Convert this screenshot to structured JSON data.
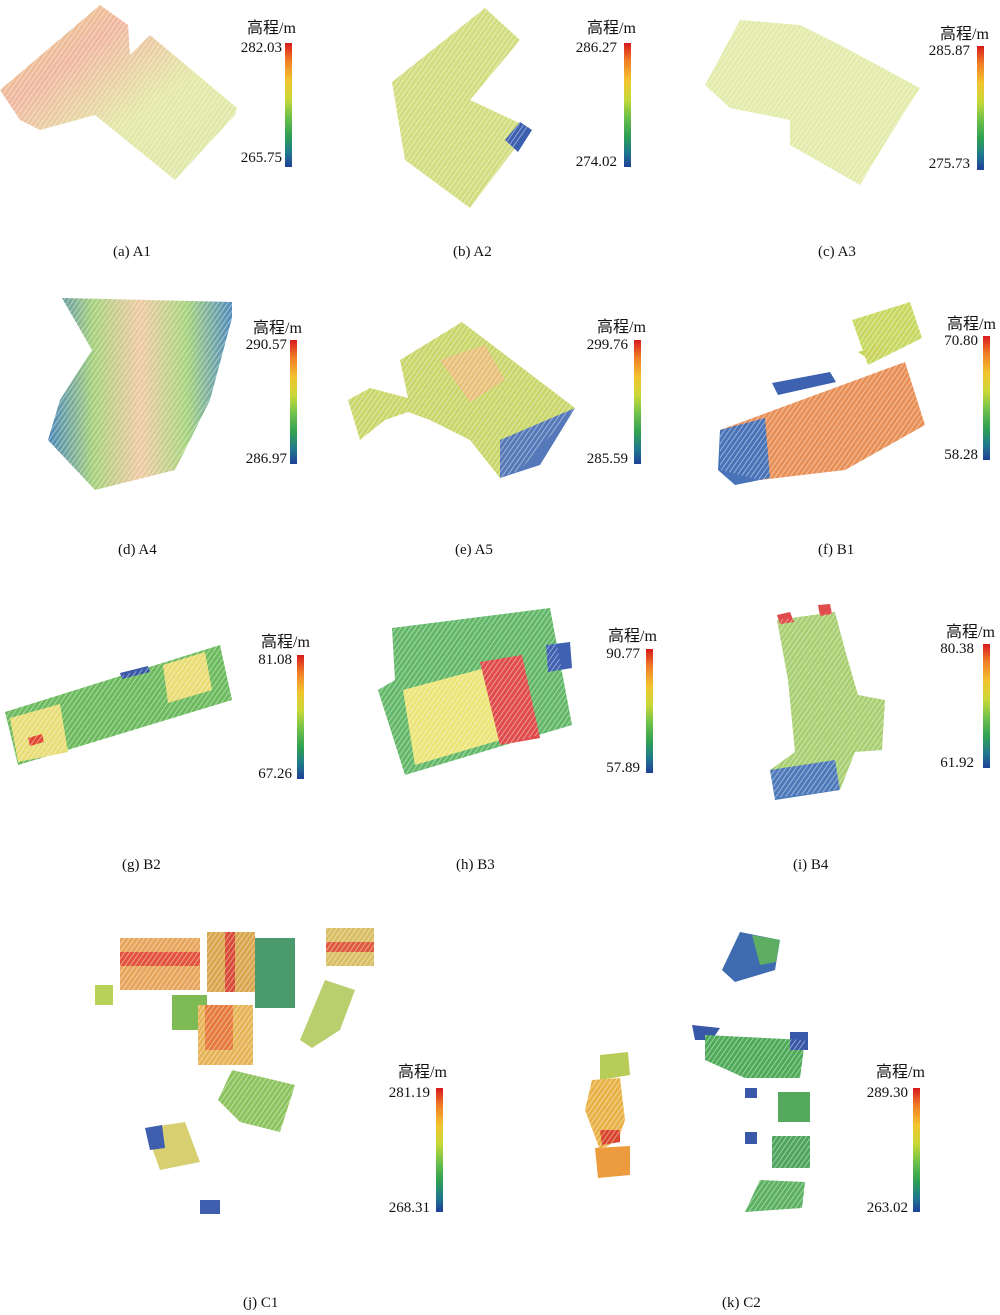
{
  "legend_title": "高程/m",
  "panels": [
    {
      "id": "a",
      "caption": "(a) A1",
      "max": "282.03",
      "min": "265.75"
    },
    {
      "id": "b",
      "caption": "(b) A2",
      "max": "286.27",
      "min": "274.02"
    },
    {
      "id": "c",
      "caption": "(c) A3",
      "max": "285.87",
      "min": "275.73"
    },
    {
      "id": "d",
      "caption": "(d) A4",
      "max": "290.57",
      "min": "286.97"
    },
    {
      "id": "e",
      "caption": "(e) A5",
      "max": "299.76",
      "min": "285.59"
    },
    {
      "id": "f",
      "caption": "(f) B1",
      "max": "70.80",
      "min": "58.28"
    },
    {
      "id": "g",
      "caption": "(g) B2",
      "max": "81.08",
      "min": "67.26"
    },
    {
      "id": "h",
      "caption": "(h) B3",
      "max": "90.77",
      "min": "57.89"
    },
    {
      "id": "i",
      "caption": "(i) B4",
      "max": "80.38",
      "min": "61.92"
    },
    {
      "id": "j",
      "caption": "(j) C1",
      "max": "281.19",
      "min": "268.31"
    },
    {
      "id": "k",
      "caption": "(k) C2",
      "max": "289.30",
      "min": "263.02"
    }
  ]
}
